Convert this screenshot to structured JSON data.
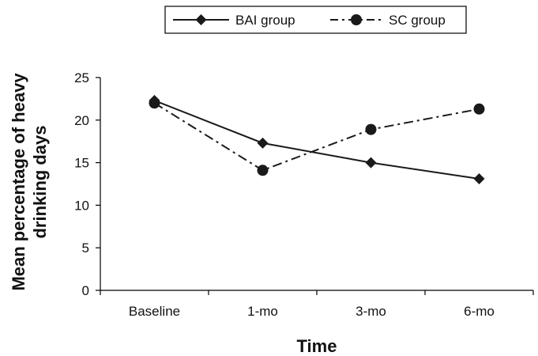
{
  "chart_data": {
    "type": "line",
    "categories": [
      "Baseline",
      "1-mo",
      "3-mo",
      "6-mo"
    ],
    "series": [
      {
        "name": "BAI group",
        "values": [
          22.3,
          17.3,
          15.0,
          13.1
        ],
        "line_style": "solid",
        "marker": "diamond"
      },
      {
        "name": "SC group",
        "values": [
          22.0,
          14.1,
          18.9,
          21.3
        ],
        "line_style": "dash-dot",
        "marker": "circle"
      }
    ],
    "xlabel": "Time",
    "ylabel_lines": [
      "Mean percentage of heavy",
      "drinking days"
    ],
    "ylim": [
      0,
      25
    ],
    "yticks": [
      0,
      5,
      10,
      15,
      20,
      25
    ],
    "grid": false,
    "legend_position": "top",
    "line_color": "#1a1a1a"
  }
}
